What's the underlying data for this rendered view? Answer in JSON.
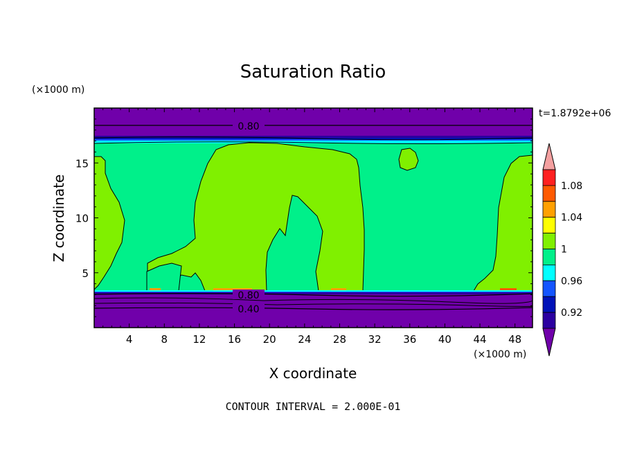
{
  "chart_data": {
    "type": "heatmap",
    "title": "Saturation Ratio",
    "xlabel": "X coordinate",
    "ylabel": "Z coordinate",
    "x_unit": "(×1000 m)",
    "y_unit": "(×1000 m)",
    "time_label": "t=1.8792e+06",
    "footer": "CONTOUR INTERVAL = 2.000E-01",
    "xlim": [
      0,
      50
    ],
    "ylim": [
      0,
      20
    ],
    "x_ticks": [
      "4",
      "8",
      "12",
      "16",
      "20",
      "24",
      "28",
      "32",
      "36",
      "40",
      "44",
      "48"
    ],
    "y_ticks": [
      "5",
      "10",
      "15"
    ],
    "colorbar_labels": [
      "0.92",
      "0.96",
      "1",
      "1.04",
      "1.08"
    ],
    "contour_labels": [
      "0.80",
      "0.80",
      "0.40"
    ],
    "colors": {
      "level_lt_0.90": "#7000aa",
      "level_0.90_0.92": "#2b00a0",
      "level_0.92_0.94": "#0012b8",
      "level_0.94_0.96": "#1455ff",
      "level_0.96_0.98": "#00ffff",
      "level_0.98_1.00": "#00f08a",
      "level_1.00_1.02": "#80f000",
      "level_1.02_1.04": "#ffff00",
      "level_1.04_1.06": "#ffa000",
      "level_1.06_1.08": "#ff5a00",
      "level_1.08_1.10": "#ff2020",
      "level_gt_1.10": "#f4a0a0"
    },
    "regions": [
      {
        "name": "upper dry layer",
        "z_range": [
          17.0,
          20.0
        ],
        "value": "<0.90"
      },
      {
        "name": "lower dry layer",
        "z_range": [
          0.0,
          3.3
        ],
        "value": "<0.90"
      },
      {
        "name": "background layer",
        "z_range": [
          3.4,
          16.6
        ],
        "value": "0.98-1.00"
      },
      {
        "name": "left supersaturated column",
        "x_range": [
          0,
          3.5
        ],
        "z_range": [
          3.6,
          15.5
        ],
        "value": "1.00-1.02"
      },
      {
        "name": "central supersaturated plume",
        "x_range": [
          6,
          31
        ],
        "z_range": [
          3.6,
          16.5
        ],
        "value": "1.00-1.02"
      },
      {
        "name": "small blob near x=36",
        "x_range": [
          34.5,
          37
        ],
        "z_range": [
          14.4,
          16.2
        ],
        "value": "1.00-1.02"
      },
      {
        "name": "right supersaturated column",
        "x_range": [
          43.5,
          50
        ],
        "z_range": [
          3.6,
          15.5
        ],
        "value": "1.00-1.02"
      }
    ]
  }
}
